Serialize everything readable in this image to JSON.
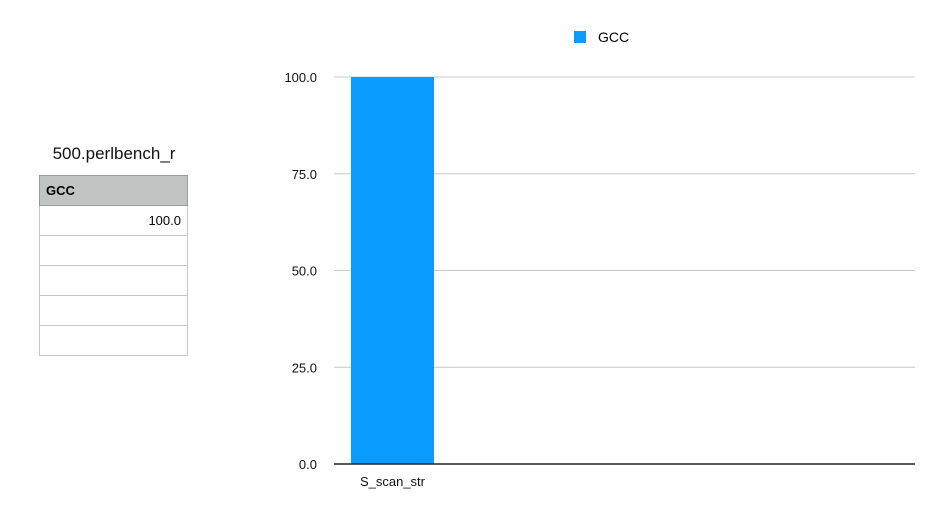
{
  "table": {
    "title": "500.perlbench_r",
    "header": "GCC",
    "rows": [
      "100.0",
      "",
      "",
      "",
      ""
    ]
  },
  "chart_data": {
    "type": "bar",
    "categories": [
      "S_scan_str"
    ],
    "series": [
      {
        "name": "GCC",
        "values": [
          100.0
        ],
        "color": "#0b9cff"
      }
    ],
    "ylim": [
      0,
      100
    ],
    "yticks": [
      "0.0",
      "25.0",
      "50.0",
      "75.0",
      "100.0"
    ],
    "grid": true,
    "legend": "top-center",
    "title": "",
    "xlabel": "",
    "ylabel": ""
  }
}
